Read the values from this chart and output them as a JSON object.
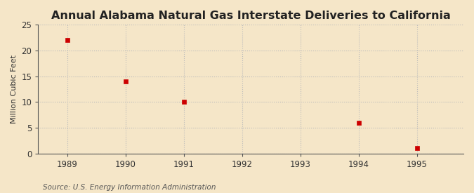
{
  "title": "Annual Alabama Natural Gas Interstate Deliveries to California",
  "ylabel": "Million Cubic Feet",
  "source": "Source: U.S. Energy Information Administration",
  "background_color": "#f5e6c8",
  "plot_bg_color": "#f5e6c8",
  "data_x": [
    1989,
    1990,
    1991,
    1994,
    1995
  ],
  "data_y": [
    22,
    14,
    10,
    6,
    1
  ],
  "marker_color": "#cc0000",
  "marker_size": 4,
  "xlim": [
    1988.5,
    1995.8
  ],
  "ylim": [
    0,
    25
  ],
  "xticks": [
    1989,
    1990,
    1991,
    1992,
    1993,
    1994,
    1995
  ],
  "yticks": [
    0,
    5,
    10,
    15,
    20,
    25
  ],
  "title_fontsize": 11.5,
  "label_fontsize": 8,
  "tick_fontsize": 8.5,
  "source_fontsize": 7.5,
  "spine_color": "#555555",
  "grid_color": "#bbbbbb"
}
